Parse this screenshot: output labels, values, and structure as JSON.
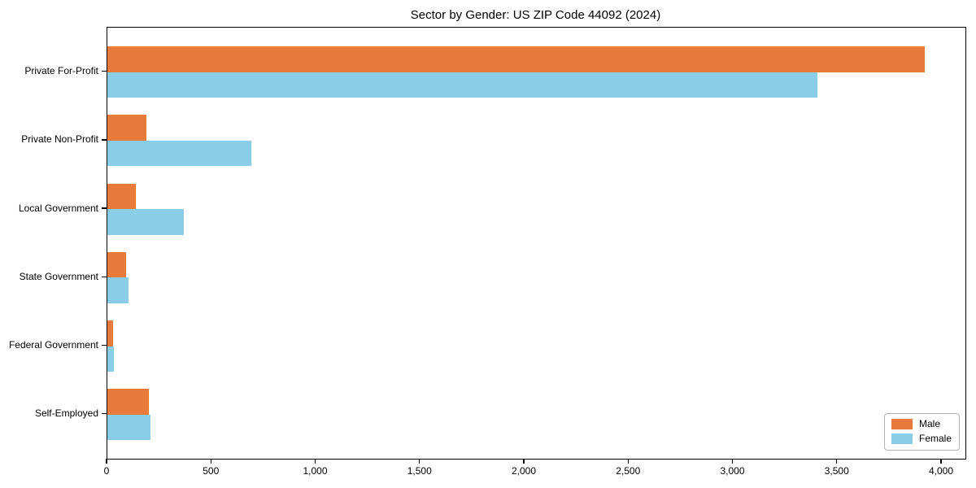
{
  "chart_data": {
    "type": "bar",
    "orientation": "horizontal",
    "title": "Sector by Gender: US ZIP Code 44092 (2024)",
    "categories": [
      "Private For-Profit",
      "Private Non-Profit",
      "Local Government",
      "State Government",
      "Federal Government",
      "Self-Employed"
    ],
    "series": [
      {
        "name": "Male",
        "color": "#e87b3c",
        "values": [
          3918,
          187,
          136,
          90,
          27,
          199
        ]
      },
      {
        "name": "Female",
        "color": "#89cde9",
        "values": [
          3403,
          690,
          366,
          101,
          31,
          207
        ]
      }
    ],
    "xlabel": "",
    "ylabel": "",
    "xlim": [
      0,
      4113
    ],
    "x_ticks": [
      0,
      500,
      1000,
      1500,
      2000,
      2500,
      3000,
      3500,
      4000
    ],
    "x_tick_labels": [
      "0",
      "500",
      "1,000",
      "1,500",
      "2,000",
      "2,500",
      "3,000",
      "3,500",
      "4,000"
    ],
    "grid": false,
    "legend": {
      "position": "lower right",
      "entries": [
        "Male",
        "Female"
      ]
    }
  },
  "colors": {
    "male": "#e87b3c",
    "female": "#89cde9",
    "spine": "#000000",
    "legend_border": "#b3b3b3"
  }
}
